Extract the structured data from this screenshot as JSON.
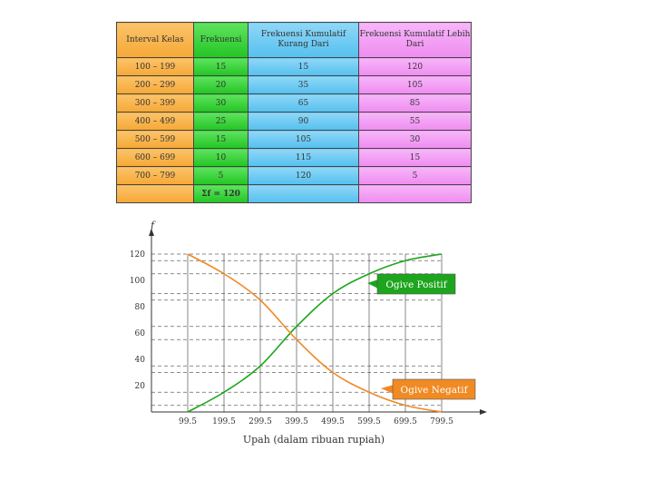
{
  "table": {
    "headers": [
      "Interval Kelas",
      "Frekuensi",
      "Frekuensi Kumulatif Kurang Dari",
      "Frekuensi Kumulatif Lebih Dari"
    ],
    "rows": [
      [
        "100 – 199",
        "15",
        "15",
        "120"
      ],
      [
        "200 – 299",
        "20",
        "35",
        "105"
      ],
      [
        "300 – 399",
        "30",
        "65",
        "85"
      ],
      [
        "400 – 499",
        "25",
        "90",
        "55"
      ],
      [
        "500 – 599",
        "15",
        "105",
        "30"
      ],
      [
        "600 – 699",
        "10",
        "115",
        "15"
      ],
      [
        "700 – 799",
        "5",
        "120",
        "5"
      ]
    ],
    "sum_label": "Σf = 120"
  },
  "chart_data": {
    "type": "line",
    "ylabel": "f",
    "xlabel": "Upah (dalam ribuan rupiah)",
    "x": [
      99.5,
      199.5,
      299.5,
      399.5,
      499.5,
      599.5,
      699.5,
      799.5
    ],
    "x_ticks": [
      "99.5",
      "199.5",
      "299.5",
      "399.5",
      "499.5",
      "599.5",
      "699.5",
      "799.5"
    ],
    "y_ticks": [
      20,
      40,
      60,
      80,
      100,
      120
    ],
    "xlim": [
      99.5,
      799.5
    ],
    "ylim": [
      0,
      120
    ],
    "reference_levels": [
      5,
      15,
      30,
      35,
      55,
      65,
      85,
      90,
      105,
      115,
      120
    ],
    "series": [
      {
        "name": "Ogive Positif",
        "color": "#1ea51e",
        "values": [
          0,
          15,
          35,
          65,
          90,
          105,
          115,
          120
        ]
      },
      {
        "name": "Ogive Negatif",
        "color": "#f08a24",
        "values": [
          120,
          105,
          85,
          55,
          30,
          15,
          5,
          0
        ]
      }
    ],
    "grid": "dashed reference lines"
  }
}
